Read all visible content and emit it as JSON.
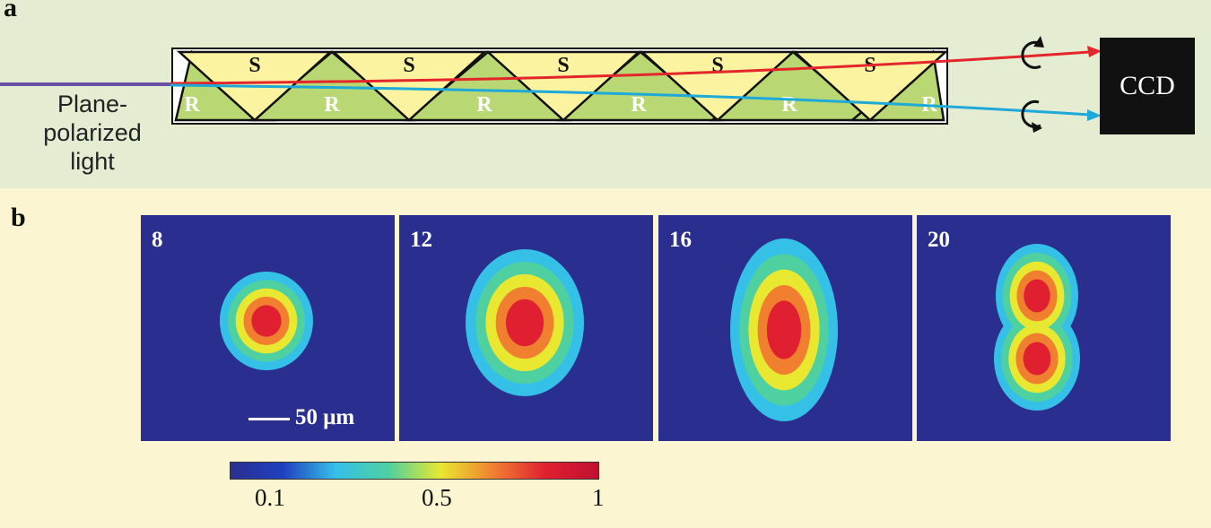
{
  "panel_a": {
    "label": "a",
    "slab_labels": [
      "S",
      "R",
      "S",
      "R",
      "S",
      "R",
      "S",
      "R",
      "S",
      "R",
      "R"
    ],
    "light_label_lines": [
      "Plane-",
      "polarized",
      "light"
    ],
    "detector_label": "CCD",
    "colors": {
      "background": "#e4ecd2",
      "s_prism": "#fbf3a0",
      "r_prism": "#b9d873",
      "input_beam": "#6a4fa8",
      "red_beam": "#e3262b",
      "blue_beam": "#1ea9d8",
      "detector": "#111111"
    }
  },
  "panel_b": {
    "label": "b",
    "frames": [
      {
        "label": "8"
      },
      {
        "label": "12"
      },
      {
        "label": "16"
      },
      {
        "label": "20"
      }
    ],
    "scale_bar_label": "50 μm",
    "colorbar": {
      "tick_labels": [
        "0.1",
        "0.5",
        "1"
      ],
      "tick_values": [
        0.1,
        0.5,
        1.0
      ],
      "stops": [
        "#2a2f8f",
        "#2040c0",
        "#35c0e8",
        "#4fd0a0",
        "#e8e830",
        "#f08030",
        "#e02030",
        "#c01030"
      ]
    }
  }
}
